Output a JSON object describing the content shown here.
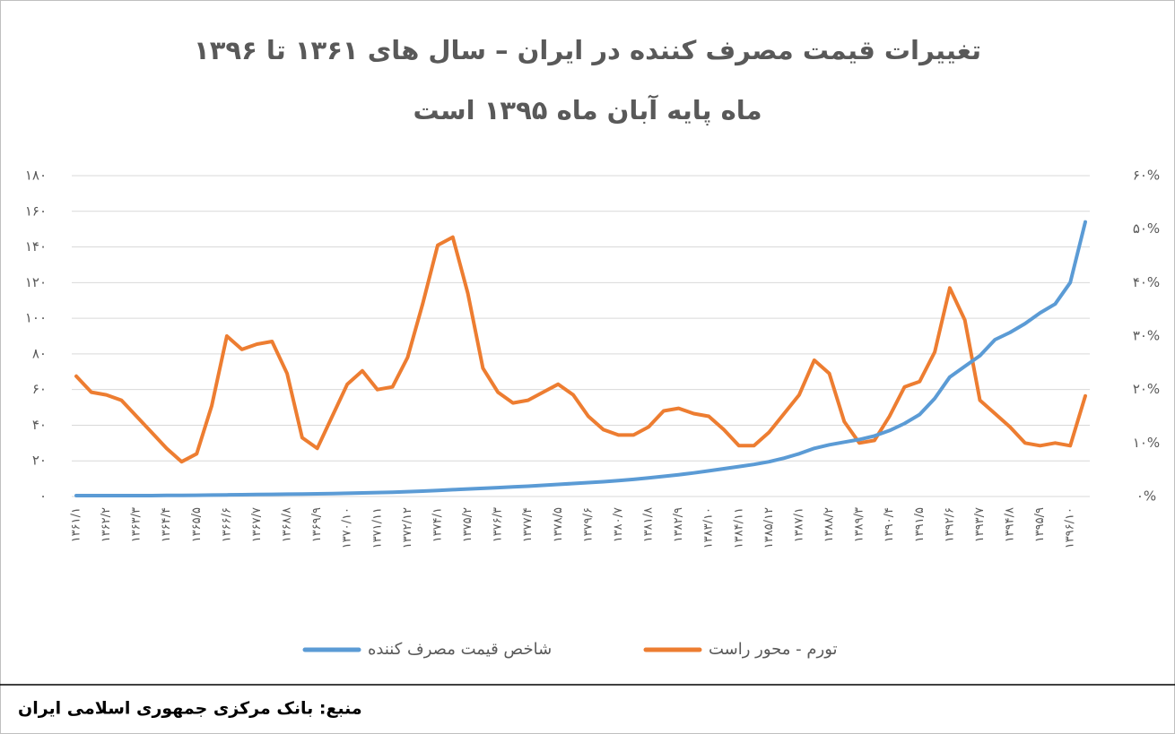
{
  "chart_data": {
    "type": "line",
    "title": "تغییرات قیمت مصرف کننده در ایران – سال های ۱۳۶۱ تا ۱۳۹۶",
    "subtitle": "ماه پایه آبان ماه ۱۳۹۵ است",
    "categories": [
      "۱۳۶۱/۱",
      null,
      "۱۳۶۲/۲",
      null,
      "۱۳۶۳/۳",
      null,
      "۱۳۶۴/۴",
      null,
      "۱۳۶۵/۵",
      null,
      "۱۳۶۶/۶",
      null,
      "۱۳۶۷/۷",
      null,
      "۱۳۶۸/۸",
      null,
      "۱۳۶۹/۹",
      null,
      "۱۳۷۰/۱۰",
      null,
      "۱۳۷۱/۱۱",
      null,
      "۱۳۷۲/۱۲",
      null,
      "۱۳۷۴/۱",
      null,
      "۱۳۷۵/۲",
      null,
      "۱۳۷۶/۳",
      null,
      "۱۳۷۷/۴",
      null,
      "۱۳۷۸/۵",
      null,
      "۱۳۷۹/۶",
      null,
      "۱۳۸۰/۷",
      null,
      "۱۳۸۱/۸",
      null,
      "۱۳۸۲/۹",
      null,
      "۱۳۸۳/۱۰",
      null,
      "۱۳۸۴/۱۱",
      null,
      "۱۳۸۵/۱۲",
      null,
      "۱۳۸۷/۱",
      null,
      "۱۳۸۸/۲",
      null,
      "۱۳۸۹/۳",
      null,
      "۱۳۹۰/۴",
      null,
      "۱۳۹۱/۵",
      null,
      "۱۳۹۲/۶",
      null,
      "۱۳۹۳/۷",
      null,
      "۱۳۹۴/۸",
      null,
      "۱۳۹۵/۹",
      null,
      "۱۳۹۶/۱۰",
      null
    ],
    "series": [
      {
        "name": "شاخص قیمت مصرف کننده",
        "color": "#5b9bd5",
        "axis": "y",
        "values": [
          0.5,
          0.5,
          0.5,
          0.5,
          0.5,
          0.5,
          0.6,
          0.6,
          0.7,
          0.8,
          0.9,
          1.0,
          1.1,
          1.2,
          1.3,
          1.4,
          1.5,
          1.6,
          1.8,
          2.0,
          2.2,
          2.4,
          2.7,
          3.0,
          3.4,
          3.8,
          4.2,
          4.6,
          5.0,
          5.4,
          5.8,
          6.3,
          6.8,
          7.3,
          7.8,
          8.3,
          8.9,
          9.6,
          10.4,
          11.3,
          12.2,
          13.2,
          14.4,
          15.6,
          16.8,
          18,
          19.5,
          21.5,
          24,
          27,
          29,
          30.5,
          32,
          34,
          37,
          41,
          46,
          55,
          67,
          73,
          79,
          88,
          92,
          97,
          103,
          108,
          120,
          154
        ]
      },
      {
        "name": "تورم - محور راست",
        "color": "#ed7d31",
        "axis": "y2",
        "values": [
          22.5,
          19.5,
          19,
          18,
          15,
          12,
          9,
          6.5,
          8,
          17,
          30,
          27.5,
          28.5,
          29,
          23,
          11,
          9,
          15,
          21,
          23.5,
          20,
          20.5,
          26,
          36,
          47,
          48.5,
          38,
          24,
          19.5,
          17.5,
          18,
          19.5,
          21,
          19,
          15,
          12.5,
          11.5,
          11.5,
          13,
          16,
          16.5,
          15.5,
          15,
          12.5,
          9.5,
          9.5,
          12,
          15.5,
          19,
          25.5,
          23,
          14,
          10,
          10.5,
          15,
          20.5,
          21.5,
          27,
          39,
          33,
          18,
          15.5,
          13,
          10,
          9.5,
          10,
          9.5,
          18.8
        ]
      }
    ],
    "ylim": [
      0,
      180
    ],
    "yticks": [
      {
        "value": 0,
        "label": "۰"
      },
      {
        "value": 20,
        "label": "۲۰"
      },
      {
        "value": 40,
        "label": "۴۰"
      },
      {
        "value": 60,
        "label": "۶۰"
      },
      {
        "value": 80,
        "label": "۸۰"
      },
      {
        "value": 100,
        "label": "۱۰۰"
      },
      {
        "value": 120,
        "label": "۱۲۰"
      },
      {
        "value": 140,
        "label": "۱۴۰"
      },
      {
        "value": 160,
        "label": "۱۶۰"
      },
      {
        "value": 180,
        "label": "۱۸۰"
      }
    ],
    "y2lim": [
      0,
      60
    ],
    "y2ticks": [
      {
        "value": 0,
        "label": "۰%"
      },
      {
        "value": 10,
        "label": "۱۰%"
      },
      {
        "value": 20,
        "label": "۲۰%"
      },
      {
        "value": 30,
        "label": "۳۰%"
      },
      {
        "value": 40,
        "label": "۴۰%"
      },
      {
        "value": 50,
        "label": "۵۰%"
      },
      {
        "value": 60,
        "label": "۶۰%"
      }
    ],
    "grid": true,
    "legend": "bottom"
  },
  "source": "منبع: بانک مرکزی جمهوری اسلامی ایران"
}
